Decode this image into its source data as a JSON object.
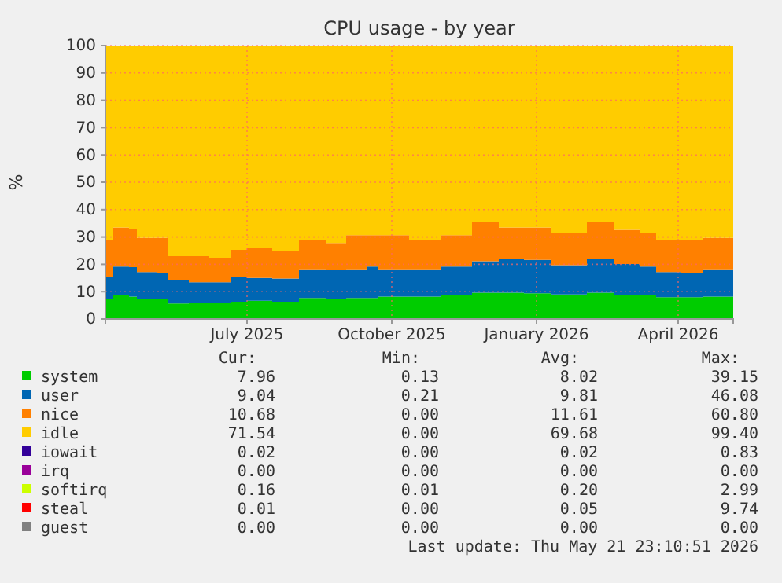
{
  "chart_data": {
    "type": "area",
    "stacked": true,
    "title": "CPU usage - by year",
    "ylabel": "%",
    "x": [
      "2025-04-02",
      "2025-04-07",
      "2025-04-17",
      "2025-04-22",
      "2025-05-05",
      "2025-05-12",
      "2025-05-25",
      "2025-06-07",
      "2025-06-21",
      "2025-07-01",
      "2025-07-17",
      "2025-08-03",
      "2025-08-20",
      "2025-09-02",
      "2025-09-15",
      "2025-09-22",
      "2025-10-12",
      "2025-11-01",
      "2025-11-21",
      "2025-12-08",
      "2025-12-24",
      "2026-01-10",
      "2026-02-02",
      "2026-02-19",
      "2026-03-08",
      "2026-03-18",
      "2026-04-03",
      "2026-04-17",
      "2026-05-06"
    ],
    "series": [
      {
        "name": "system",
        "color": "#00cc00",
        "values": [
          7.3,
          8.6,
          8.2,
          7.5,
          7.3,
          5.7,
          5.9,
          5.9,
          6.3,
          6.7,
          6.3,
          7.7,
          7.3,
          7.7,
          7.7,
          8.2,
          8.2,
          8.6,
          9.6,
          9.6,
          9.4,
          9.0,
          9.6,
          8.6,
          8.6,
          8.0,
          8.0,
          8.2,
          8.4
        ]
      },
      {
        "name": "user",
        "color": "#0066b3",
        "values": [
          8.0,
          10.6,
          10.8,
          9.7,
          9.4,
          8.7,
          7.5,
          7.5,
          9.0,
          8.3,
          8.5,
          10.5,
          10.5,
          10.5,
          11.5,
          10.0,
          10.0,
          10.6,
          11.5,
          12.4,
          12.2,
          10.7,
          12.4,
          11.5,
          10.6,
          9.2,
          8.7,
          10.0,
          8.8
        ]
      },
      {
        "name": "nice",
        "color": "#ff8000",
        "values": [
          13.4,
          14.3,
          14.0,
          12.5,
          13.0,
          8.6,
          9.6,
          9.0,
          10.0,
          10.9,
          10.1,
          10.5,
          10.0,
          12.5,
          11.5,
          12.5,
          10.5,
          11.5,
          14.3,
          11.5,
          11.9,
          11.9,
          13.4,
          12.5,
          12.4,
          11.5,
          12.0,
          11.5,
          11.5
        ]
      },
      {
        "name": "idle",
        "color": "#ffcc00",
        "values": [
          71.3,
          66.5,
          67,
          70.3,
          70.3,
          77,
          77,
          77.6,
          74.7,
          74.1,
          75.1,
          71.3,
          72.2,
          69.3,
          69.3,
          69.3,
          71.3,
          69.3,
          64.6,
          66.5,
          66.5,
          68.4,
          64.6,
          67.4,
          68.4,
          71.3,
          71.3,
          70.3,
          71.3
        ]
      },
      {
        "name": "iowait",
        "color": "#330099",
        "values": [
          null,
          null,
          null,
          null,
          null,
          null,
          null,
          null,
          null,
          null,
          null,
          null,
          null,
          null,
          null,
          null,
          null,
          null,
          null,
          null,
          null,
          null,
          null,
          null,
          null,
          null,
          null,
          null,
          null
        ]
      },
      {
        "name": "irq",
        "color": "#990099",
        "values": [
          null,
          null,
          null,
          null,
          null,
          null,
          null,
          null,
          null,
          null,
          null,
          null,
          null,
          null,
          null,
          null,
          null,
          null,
          null,
          null,
          null,
          null,
          null,
          null,
          null,
          null,
          null,
          null,
          null
        ]
      },
      {
        "name": "softirq",
        "color": "#ccff00",
        "values": [
          null,
          null,
          null,
          null,
          null,
          null,
          null,
          null,
          null,
          null,
          null,
          null,
          null,
          null,
          null,
          null,
          null,
          null,
          null,
          null,
          null,
          null,
          null,
          null,
          null,
          null,
          null,
          null,
          null
        ]
      },
      {
        "name": "steal",
        "color": "#ff0000",
        "values": [
          null,
          null,
          null,
          null,
          null,
          null,
          null,
          null,
          null,
          null,
          null,
          null,
          null,
          null,
          null,
          null,
          null,
          null,
          null,
          null,
          null,
          null,
          null,
          null,
          null,
          null,
          null,
          null,
          null
        ]
      },
      {
        "name": "guest",
        "color": "#808080",
        "values": [
          null,
          null,
          null,
          null,
          null,
          null,
          null,
          null,
          null,
          null,
          null,
          null,
          null,
          null,
          null,
          null,
          null,
          null,
          null,
          null,
          null,
          null,
          null,
          null,
          null,
          null,
          null,
          null,
          null
        ]
      }
    ],
    "xlim": [
      "2025-04-02",
      "2026-05-06"
    ],
    "xticks": [
      {
        "value": "2025-07-01",
        "label": "July 2025"
      },
      {
        "value": "2025-10-01",
        "label": "October 2025"
      },
      {
        "value": "2026-01-01",
        "label": "January 2026"
      },
      {
        "value": "2026-04-01",
        "label": "April 2026"
      }
    ],
    "ylim": [
      0,
      100
    ],
    "yticks": [
      0,
      10,
      20,
      30,
      40,
      50,
      60,
      70,
      80,
      90,
      100
    ],
    "grid": true,
    "legend": "bottom",
    "annotations": [
      "Cur:\tMin:\tAvg:\tMax:",
      "7.96\t0.13\t8.02\t39.15",
      "9.04\t0.21\t9.81\t46.08",
      "10.68\t0.00\t11.61\t60.80",
      "71.54\t0.00\t69.68\t99.40",
      "0.02\t0.00\t0.02\t0.83",
      "0.00\t0.00\t0.00\t0.00",
      "0.16\t0.01\t0.20\t2.99",
      "0.01\t0.00\t0.05\t9.74",
      "0.00\t0.00\t0.00\t0.00",
      "Last update: Thu May 21 23:10:51 2026"
    ]
  }
}
